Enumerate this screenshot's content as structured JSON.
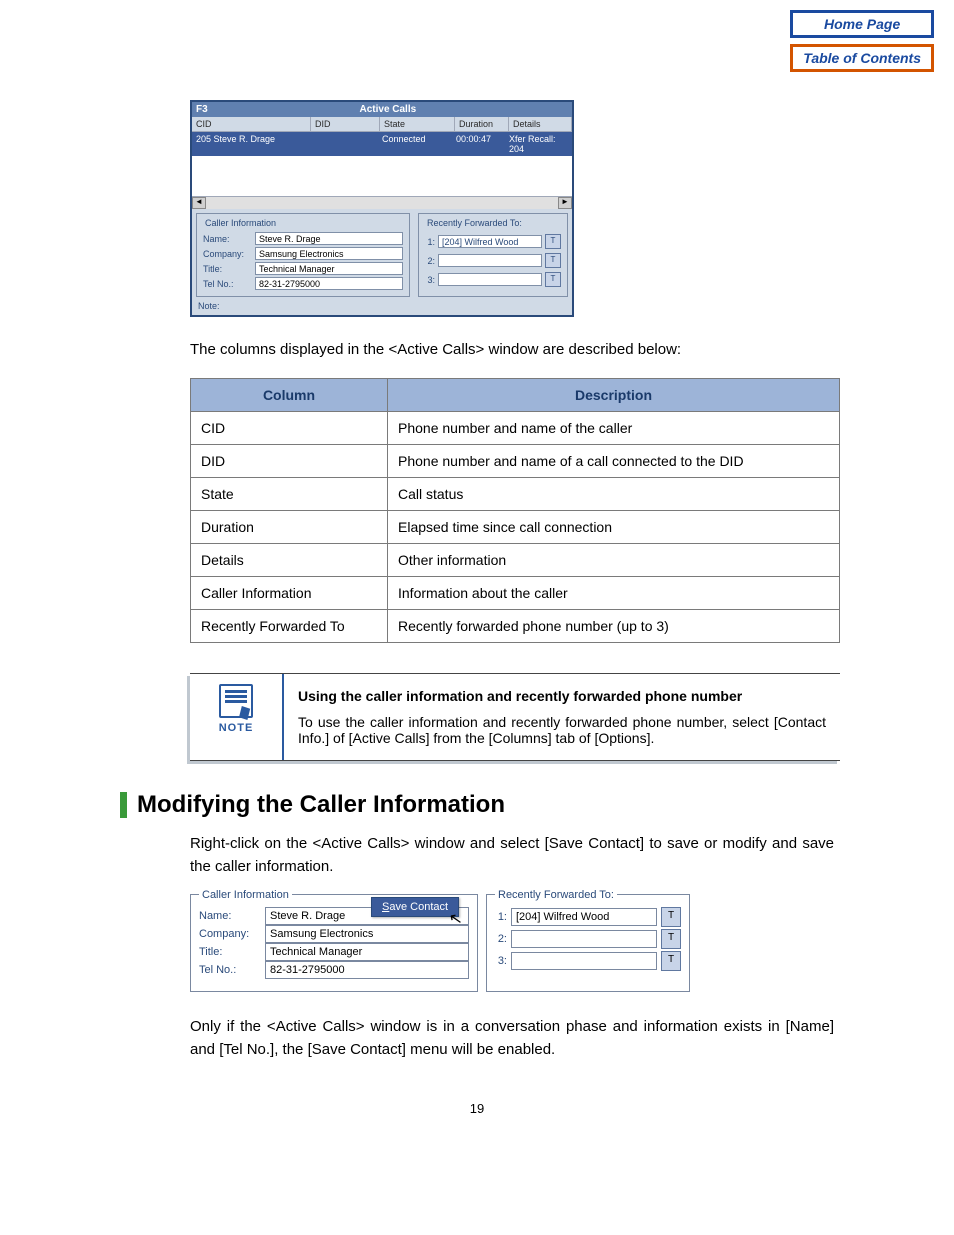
{
  "nav": {
    "home": "Home Page",
    "toc": "Table of Contents"
  },
  "win1": {
    "f_label": "F3",
    "title": "Active Calls",
    "headers": {
      "cid": "CID",
      "did": "DID",
      "state": "State",
      "duration": "Duration",
      "details": "Details"
    },
    "row": {
      "cid": "205 Steve R. Drage",
      "did": "",
      "state": "Connected",
      "duration": "00:00:47",
      "details": "Xfer Recall: 204"
    },
    "caller_info_legend": "Caller Information",
    "fwd_legend": "Recently Forwarded To:",
    "name_lbl": "Name:",
    "name_val": "Steve R. Drage",
    "company_lbl": "Company:",
    "company_val": "Samsung Electronics",
    "title_lbl": "Title:",
    "title_val": "Technical Manager",
    "tel_lbl": "Tel No.:",
    "tel_val": "82-31-2795000",
    "note_lbl": "Note:",
    "fwd1_num": "1:",
    "fwd1_val": "[204] Wilfred Wood",
    "fwd2_num": "2:",
    "fwd2_val": "",
    "fwd3_num": "3:",
    "fwd3_val": "",
    "tbtn": "T",
    "scroll_left": "◄",
    "scroll_right": "►"
  },
  "intro": "The columns displayed in the <Active Calls> window are described below:",
  "table": {
    "col1": "Column",
    "col2": "Description",
    "rows": [
      {
        "c": "CID",
        "d": "Phone number and name of the caller"
      },
      {
        "c": "DID",
        "d": "Phone number and name of a call connected to the DID"
      },
      {
        "c": "State",
        "d": "Call status"
      },
      {
        "c": "Duration",
        "d": "Elapsed time since call connection"
      },
      {
        "c": "Details",
        "d": "Other information"
      },
      {
        "c": "Caller Information",
        "d": "Information about the caller"
      },
      {
        "c": "Recently Forwarded To",
        "d": "Recently forwarded phone number (up to 3)"
      }
    ]
  },
  "note": {
    "label": "NOTE",
    "title": "Using the caller information and recently forwarded phone number",
    "body": "To use the caller information and recently forwarded phone number, select [Contact Info.] of [Active Calls] from the [Columns] tab of [Options]."
  },
  "section_heading": "Modifying the Caller Information",
  "para1": "Right-click on the <Active Calls> window and select [Save Contact] to save or modify and save the caller information.",
  "win2": {
    "ci_legend": "Caller Information",
    "fwd_legend": "Recently Forwarded To:",
    "save_btn_u": "S",
    "save_btn_rest": "ave Contact",
    "cursor": "↖",
    "name_lbl": "Name:",
    "name_val": "Steve R. Drage",
    "company_lbl": "Company:",
    "company_val": "Samsung Electronics",
    "title_lbl": "Title:",
    "title_val": "Technical Manager",
    "tel_lbl": "Tel No.:",
    "tel_val": "82-31-2795000",
    "fwd1_num": "1:",
    "fwd1_val": "[204] Wilfred Wood",
    "fwd2_num": "2:",
    "fwd2_val": "",
    "fwd3_num": "3:",
    "fwd3_val": "",
    "tbtn": "T"
  },
  "para2": "Only if the <Active Calls> window is in a conversation phase and information exists in [Name] and [Tel No.], the [Save Contact] menu will be enabled.",
  "page_num": "19",
  "colors": {
    "nav_border_home": "#1a4aa0",
    "nav_border_toc": "#d35400",
    "table_header_bg": "#9db4d8",
    "section_bar": "#3a9a3a"
  }
}
